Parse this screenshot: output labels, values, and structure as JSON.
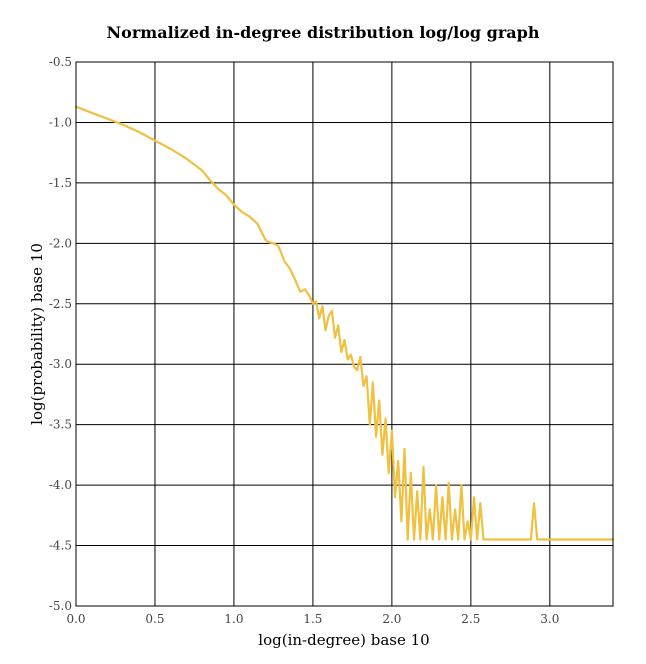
{
  "chart_data": {
    "type": "line",
    "title": "Normalized in-degree distribution log/log graph",
    "xlabel": "log(in-degree) base 10",
    "ylabel": "log(probability) base 10",
    "xlim": [
      0,
      3.4
    ],
    "ylim": [
      -5.0,
      -0.5
    ],
    "xticks": [
      0.0,
      0.5,
      1.0,
      1.5,
      2.0,
      2.5,
      3.0
    ],
    "xtick_labels": [
      "0.0",
      "0.5",
      "1.0",
      "1.5",
      "2.0",
      "2.5",
      "3.0"
    ],
    "yticks": [
      -0.5,
      -1.0,
      -1.5,
      -2.0,
      -2.5,
      -3.0,
      -3.5,
      -4.0,
      -4.5,
      -5.0
    ],
    "ytick_labels": [
      "-0.5",
      "-1.0",
      "-1.5",
      "-2.0",
      "-2.5",
      "-3.0",
      "-3.5",
      "-4.0",
      "-4.5",
      "-5.0"
    ],
    "grid": true,
    "line_color": "#f0c040",
    "series": [
      {
        "x": [
          0.0,
          0.1,
          0.2,
          0.3,
          0.4,
          0.5,
          0.6,
          0.7,
          0.8,
          0.85,
          0.9,
          0.95,
          1.0,
          1.05,
          1.1,
          1.15,
          1.18,
          1.2,
          1.22,
          1.25,
          1.28,
          1.3,
          1.32,
          1.35,
          1.38,
          1.4,
          1.42,
          1.45,
          1.48,
          1.5,
          1.52,
          1.54,
          1.56,
          1.58,
          1.6,
          1.62,
          1.64,
          1.66,
          1.68,
          1.7,
          1.72,
          1.74,
          1.76,
          1.78,
          1.8,
          1.82,
          1.84,
          1.86,
          1.88,
          1.9,
          1.92,
          1.94,
          1.96,
          1.98,
          2.0,
          2.02,
          2.04,
          2.06,
          2.08,
          2.1,
          2.12,
          2.14,
          2.16,
          2.18,
          2.2,
          2.22,
          2.24,
          2.26,
          2.28,
          2.3,
          2.32,
          2.34,
          2.36,
          2.38,
          2.4,
          2.42,
          2.44,
          2.46,
          2.48,
          2.5,
          2.52,
          2.54,
          2.56,
          2.58,
          2.6,
          2.7,
          2.8,
          2.88,
          2.9,
          2.92,
          3.0,
          3.1,
          3.2,
          3.3,
          3.4
        ],
        "y": [
          -0.87,
          -0.92,
          -0.97,
          -1.02,
          -1.08,
          -1.15,
          -1.22,
          -1.3,
          -1.4,
          -1.48,
          -1.55,
          -1.6,
          -1.68,
          -1.74,
          -1.78,
          -1.84,
          -1.92,
          -1.97,
          -1.99,
          -2.0,
          -2.02,
          -2.08,
          -2.15,
          -2.2,
          -2.28,
          -2.34,
          -2.4,
          -2.38,
          -2.44,
          -2.5,
          -2.48,
          -2.62,
          -2.52,
          -2.72,
          -2.6,
          -2.56,
          -2.78,
          -2.68,
          -2.9,
          -2.8,
          -2.96,
          -2.92,
          -3.02,
          -3.05,
          -2.94,
          -3.18,
          -3.1,
          -3.5,
          -3.15,
          -3.6,
          -3.3,
          -3.75,
          -3.45,
          -3.9,
          -3.55,
          -4.1,
          -3.8,
          -4.3,
          -3.7,
          -4.45,
          -3.9,
          -4.45,
          -4.05,
          -4.45,
          -3.85,
          -4.45,
          -4.2,
          -4.45,
          -4.0,
          -4.45,
          -4.1,
          -4.45,
          -3.98,
          -4.45,
          -4.2,
          -4.45,
          -4.0,
          -4.45,
          -4.3,
          -4.45,
          -4.1,
          -4.45,
          -4.15,
          -4.45,
          -4.45,
          -4.45,
          -4.45,
          -4.45,
          -4.15,
          -4.45,
          -4.45,
          -4.45,
          -4.45,
          -4.45,
          -4.45
        ]
      }
    ]
  }
}
